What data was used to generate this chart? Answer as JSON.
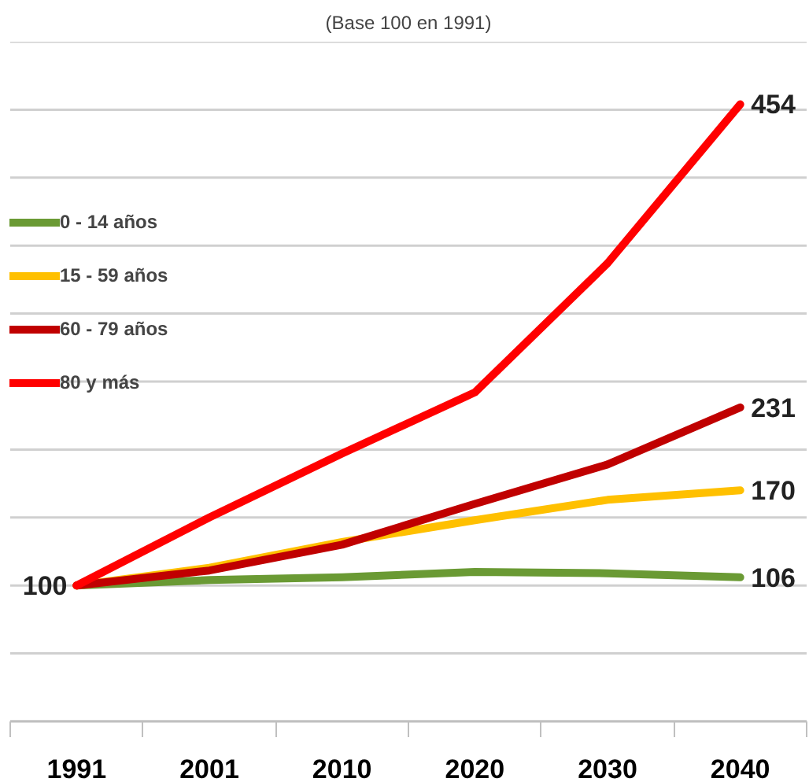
{
  "chart_data": {
    "type": "line",
    "title": "(Base 100 en 1991)",
    "categories": [
      "1991",
      "2001",
      "2010",
      "2020",
      "2030",
      "2040"
    ],
    "series": [
      {
        "name": "0 - 14 años",
        "color": "#6a9a34",
        "values": [
          100,
          104,
          106,
          110,
          109,
          106
        ],
        "value_labels": [
          "100",
          null,
          null,
          null,
          null,
          "106"
        ]
      },
      {
        "name": "15 - 59 años",
        "color": "#ffc000",
        "values": [
          100,
          113,
          132,
          148,
          163,
          170
        ],
        "value_labels": [
          null,
          null,
          null,
          null,
          null,
          "170"
        ]
      },
      {
        "name": "60 - 79 años",
        "color": "#c00000",
        "values": [
          100,
          111,
          130,
          160,
          189,
          231
        ],
        "value_labels": [
          null,
          null,
          null,
          null,
          null,
          "231"
        ]
      },
      {
        "name": "80 y más",
        "color": "#ff0000",
        "values": [
          100,
          150,
          197,
          242,
          337,
          454
        ],
        "value_labels": [
          null,
          null,
          null,
          null,
          null,
          "454"
        ]
      }
    ],
    "ylim": [
      0,
      500
    ],
    "yticks": [
      {
        "value": 0,
        "label": null
      },
      {
        "value": 50,
        "label": null
      },
      {
        "value": 100,
        "label": null
      },
      {
        "value": 150,
        "label": null
      },
      {
        "value": 200,
        "label": null
      },
      {
        "value": 250,
        "label": null
      },
      {
        "value": 300,
        "label": null
      },
      {
        "value": 350,
        "label": null
      },
      {
        "value": 400,
        "label": null
      },
      {
        "value": 450,
        "label": null
      },
      {
        "value": 500,
        "label": null
      }
    ],
    "tick_labels": "x",
    "grid": "y",
    "legend": "top left",
    "marker": "none",
    "line_style": "solid"
  }
}
